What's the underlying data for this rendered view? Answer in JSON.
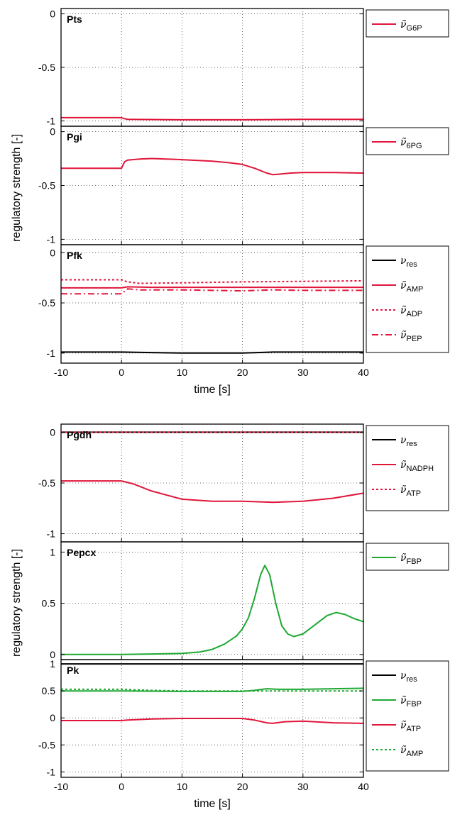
{
  "figure": {
    "top_ylabel": "regulatory strength [-]",
    "bottom_ylabel": "regulatory strength [-]"
  },
  "chart_data": [
    {
      "type": "line",
      "title": "Pts",
      "xlim": [
        -10,
        40
      ],
      "ylim": [
        -1.05,
        0.05
      ],
      "yticks": [
        "0",
        "-0.5",
        "-1"
      ],
      "ytick_values": [
        0,
        -0.5,
        -1
      ],
      "xticks": [],
      "xlabel": "",
      "grid": true,
      "legend": "outside-right",
      "series": [
        {
          "name": "ν̃ G6P",
          "symbol": "ν̃",
          "sub": "G6P",
          "color": "#e0163a",
          "style": "solid",
          "x": [
            -10,
            0,
            0.5,
            1,
            10,
            20,
            30,
            40
          ],
          "y": [
            -0.97,
            -0.97,
            -0.98,
            -0.985,
            -0.99,
            -0.99,
            -0.985,
            -0.985
          ]
        }
      ]
    },
    {
      "type": "line",
      "title": "Pgi",
      "xlim": [
        -10,
        40
      ],
      "ylim": [
        -1.05,
        0.05
      ],
      "yticks": [
        "0",
        "-0.5",
        "-1"
      ],
      "ytick_values": [
        0,
        -0.5,
        -1
      ],
      "xticks": [],
      "xlabel": "",
      "grid": true,
      "legend": "outside-right",
      "series": [
        {
          "name": "ν̃ 6PG",
          "symbol": "ν̃",
          "sub": "6PG",
          "color": "#e0163a",
          "style": "solid",
          "x": [
            -10,
            0,
            0.5,
            1,
            3,
            5,
            10,
            15,
            18,
            20,
            22,
            24,
            25,
            26,
            28,
            30,
            35,
            40
          ],
          "y": [
            -0.34,
            -0.34,
            -0.28,
            -0.265,
            -0.255,
            -0.25,
            -0.26,
            -0.275,
            -0.29,
            -0.305,
            -0.34,
            -0.385,
            -0.4,
            -0.395,
            -0.385,
            -0.38,
            -0.38,
            -0.385
          ]
        }
      ]
    },
    {
      "type": "line",
      "title": "Pfk",
      "xlim": [
        -10,
        40
      ],
      "ylim": [
        -1.1,
        0.08
      ],
      "yticks": [
        "0",
        "-0.5",
        "-1"
      ],
      "ytick_values": [
        0,
        -0.5,
        -1
      ],
      "xticks": [
        "-10",
        "0",
        "10",
        "20",
        "30",
        "40"
      ],
      "xtick_values": [
        -10,
        0,
        10,
        20,
        30,
        40
      ],
      "xlabel": "time [s]",
      "grid": true,
      "legend": "outside-right",
      "series": [
        {
          "name": "ν res",
          "symbol": "ν",
          "sub": "res",
          "color": "#000000",
          "style": "solid",
          "x": [
            -10,
            0,
            5,
            10,
            20,
            25,
            30,
            40
          ],
          "y": [
            -0.99,
            -0.99,
            -0.995,
            -1.0,
            -1.0,
            -0.99,
            -0.99,
            -0.99
          ]
        },
        {
          "name": "ν̃ AMP",
          "symbol": "ν̃",
          "sub": "AMP",
          "color": "#e0163a",
          "style": "solid",
          "x": [
            -10,
            0,
            1,
            5,
            10,
            20,
            30,
            40
          ],
          "y": [
            -0.35,
            -0.35,
            -0.34,
            -0.345,
            -0.345,
            -0.345,
            -0.345,
            -0.345
          ]
        },
        {
          "name": "ν̃ ADP",
          "symbol": "ν̃",
          "sub": "ADP",
          "color": "#e0163a",
          "style": "dotted",
          "x": [
            -10,
            0,
            1,
            3,
            10,
            20,
            30,
            40
          ],
          "y": [
            -0.27,
            -0.27,
            -0.29,
            -0.305,
            -0.3,
            -0.29,
            -0.285,
            -0.28
          ]
        },
        {
          "name": "ν̃ PEP",
          "symbol": "ν̃",
          "sub": "PEP",
          "color": "#e0163a",
          "style": "dashdot",
          "x": [
            -10,
            0,
            1,
            3,
            10,
            20,
            25,
            30,
            40
          ],
          "y": [
            -0.41,
            -0.41,
            -0.36,
            -0.37,
            -0.37,
            -0.38,
            -0.37,
            -0.375,
            -0.375
          ]
        }
      ]
    },
    {
      "type": "line",
      "title": "Pgdh",
      "xlim": [
        -10,
        40
      ],
      "ylim": [
        -1.08,
        0.08
      ],
      "yticks": [
        "0",
        "-0.5",
        "-1"
      ],
      "ytick_values": [
        0,
        -0.5,
        -1
      ],
      "xticks": [],
      "xlabel": "",
      "grid": true,
      "legend": "outside-right",
      "series": [
        {
          "name": "ν res",
          "symbol": "ν",
          "sub": "res",
          "color": "#000000",
          "style": "solid",
          "x": [
            -10,
            40
          ],
          "y": [
            0,
            0
          ]
        },
        {
          "name": "ν̃ NADPH",
          "symbol": "ν̃",
          "sub": "NADPH",
          "color": "#e0163a",
          "style": "solid",
          "x": [
            -10,
            0,
            2,
            5,
            10,
            15,
            20,
            25,
            30,
            35,
            40
          ],
          "y": [
            -0.48,
            -0.48,
            -0.51,
            -0.58,
            -0.66,
            -0.68,
            -0.68,
            -0.69,
            -0.68,
            -0.65,
            -0.6
          ]
        },
        {
          "name": "ν̃ ATP",
          "symbol": "ν̃",
          "sub": "ATP",
          "color": "#e0163a",
          "style": "dotted",
          "x": [
            -10,
            40
          ],
          "y": [
            0,
            0
          ]
        }
      ]
    },
    {
      "type": "line",
      "title": "Pepcx",
      "xlim": [
        -10,
        40
      ],
      "ylim": [
        -0.05,
        1.1
      ],
      "yticks": [
        "1",
        "0.5",
        "0"
      ],
      "ytick_values": [
        1,
        0.5,
        0
      ],
      "xticks": [],
      "xlabel": "",
      "grid": true,
      "legend": "outside-right",
      "series": [
        {
          "name": "ν̃ FBP",
          "symbol": "ν̃",
          "sub": "FBP",
          "color": "#1ea832",
          "style": "solid",
          "x": [
            -10,
            0,
            5,
            10,
            13,
            15,
            17,
            19,
            20,
            21,
            22,
            23,
            23.7,
            24.5,
            25.5,
            26.5,
            27.5,
            28.5,
            30,
            32,
            34,
            35.5,
            37,
            38.5,
            40
          ],
          "y": [
            0,
            0,
            0.005,
            0.01,
            0.025,
            0.05,
            0.1,
            0.18,
            0.25,
            0.36,
            0.55,
            0.78,
            0.87,
            0.78,
            0.5,
            0.28,
            0.2,
            0.175,
            0.2,
            0.29,
            0.38,
            0.41,
            0.39,
            0.35,
            0.32
          ]
        }
      ]
    },
    {
      "type": "line",
      "title": "Pk",
      "xlim": [
        -10,
        40
      ],
      "ylim": [
        -1.1,
        1.08
      ],
      "yticks": [
        "1",
        "0.5",
        "0",
        "-0.5",
        "-1"
      ],
      "ytick_values": [
        1,
        0.5,
        0,
        -0.5,
        -1
      ],
      "xticks": [
        "-10",
        "0",
        "10",
        "20",
        "30",
        "40"
      ],
      "xtick_values": [
        -10,
        0,
        10,
        20,
        30,
        40
      ],
      "xlabel": "time [s]",
      "grid": true,
      "legend": "outside-right",
      "series": [
        {
          "name": "ν res",
          "symbol": "ν",
          "sub": "res",
          "color": "#000000",
          "style": "solid",
          "x": [
            -10,
            40
          ],
          "y": [
            1,
            1
          ]
        },
        {
          "name": "ν̃ FBP",
          "symbol": "ν̃",
          "sub": "FBP",
          "color": "#1ea832",
          "style": "solid",
          "x": [
            -10,
            0,
            10,
            20,
            22,
            24,
            26,
            30,
            35,
            40
          ],
          "y": [
            0.5,
            0.5,
            0.49,
            0.49,
            0.51,
            0.54,
            0.53,
            0.53,
            0.54,
            0.55
          ]
        },
        {
          "name": "ν̃ ATP",
          "symbol": "ν̃",
          "sub": "ATP",
          "color": "#e0163a",
          "style": "solid",
          "x": [
            -10,
            0,
            1,
            5,
            10,
            15,
            20,
            22,
            24,
            25,
            27,
            30,
            35,
            40
          ],
          "y": [
            -0.05,
            -0.05,
            -0.04,
            -0.02,
            -0.01,
            -0.01,
            -0.01,
            -0.04,
            -0.09,
            -0.1,
            -0.07,
            -0.06,
            -0.09,
            -0.1
          ]
        },
        {
          "name": "ν̃ AMP",
          "symbol": "ν̃",
          "sub": "AMP",
          "color": "#1ea832",
          "style": "dotted",
          "x": [
            -10,
            0,
            5,
            10,
            40
          ],
          "y": [
            0.53,
            0.53,
            0.51,
            0.5,
            0.5
          ]
        }
      ]
    }
  ]
}
